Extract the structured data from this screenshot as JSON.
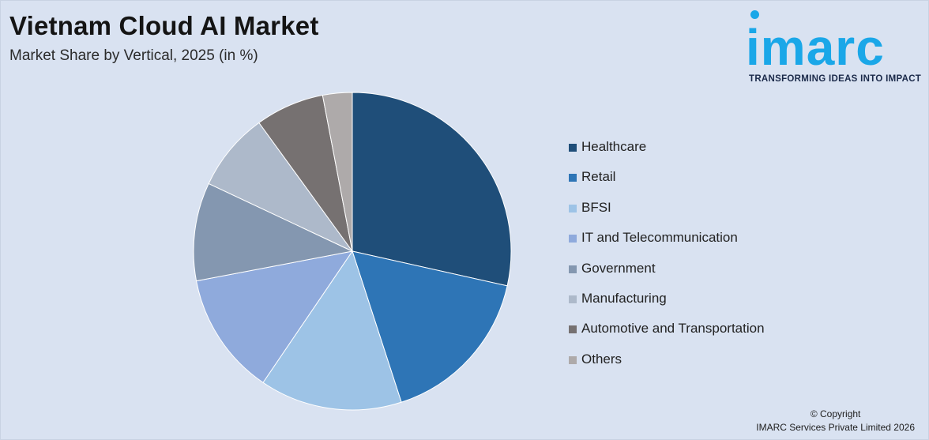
{
  "header": {
    "title": "Vietnam Cloud AI Market",
    "subtitle": "Market Share by Vertical, 2025 (in %)"
  },
  "logo": {
    "brand": "imarc",
    "tagline": "TRANSFORMING IDEAS INTO IMPACT",
    "color": "#1aa7e8"
  },
  "footer": {
    "copyright": "© Copyright",
    "company": "IMARC Services Private Limited 2026"
  },
  "chart_data": {
    "type": "pie",
    "title": "Vietnam Cloud AI Market",
    "subtitle": "Market Share by Vertical, 2025 (in %)",
    "legend_position": "right",
    "categories": [
      "Healthcare",
      "Retail",
      "BFSI",
      "IT and Telecommunication",
      "Government",
      "Manufacturing",
      "Automotive and Transportation",
      "Others"
    ],
    "values": [
      28.5,
      16.5,
      14.5,
      12.5,
      10,
      8,
      7,
      3
    ],
    "colors": [
      "#1f4e79",
      "#2e75b6",
      "#9dc3e6",
      "#8faadc",
      "#8497b0",
      "#adb9ca",
      "#767171",
      "#aeaaaa"
    ],
    "start_angle_deg": 0,
    "direction": "clockwise"
  }
}
